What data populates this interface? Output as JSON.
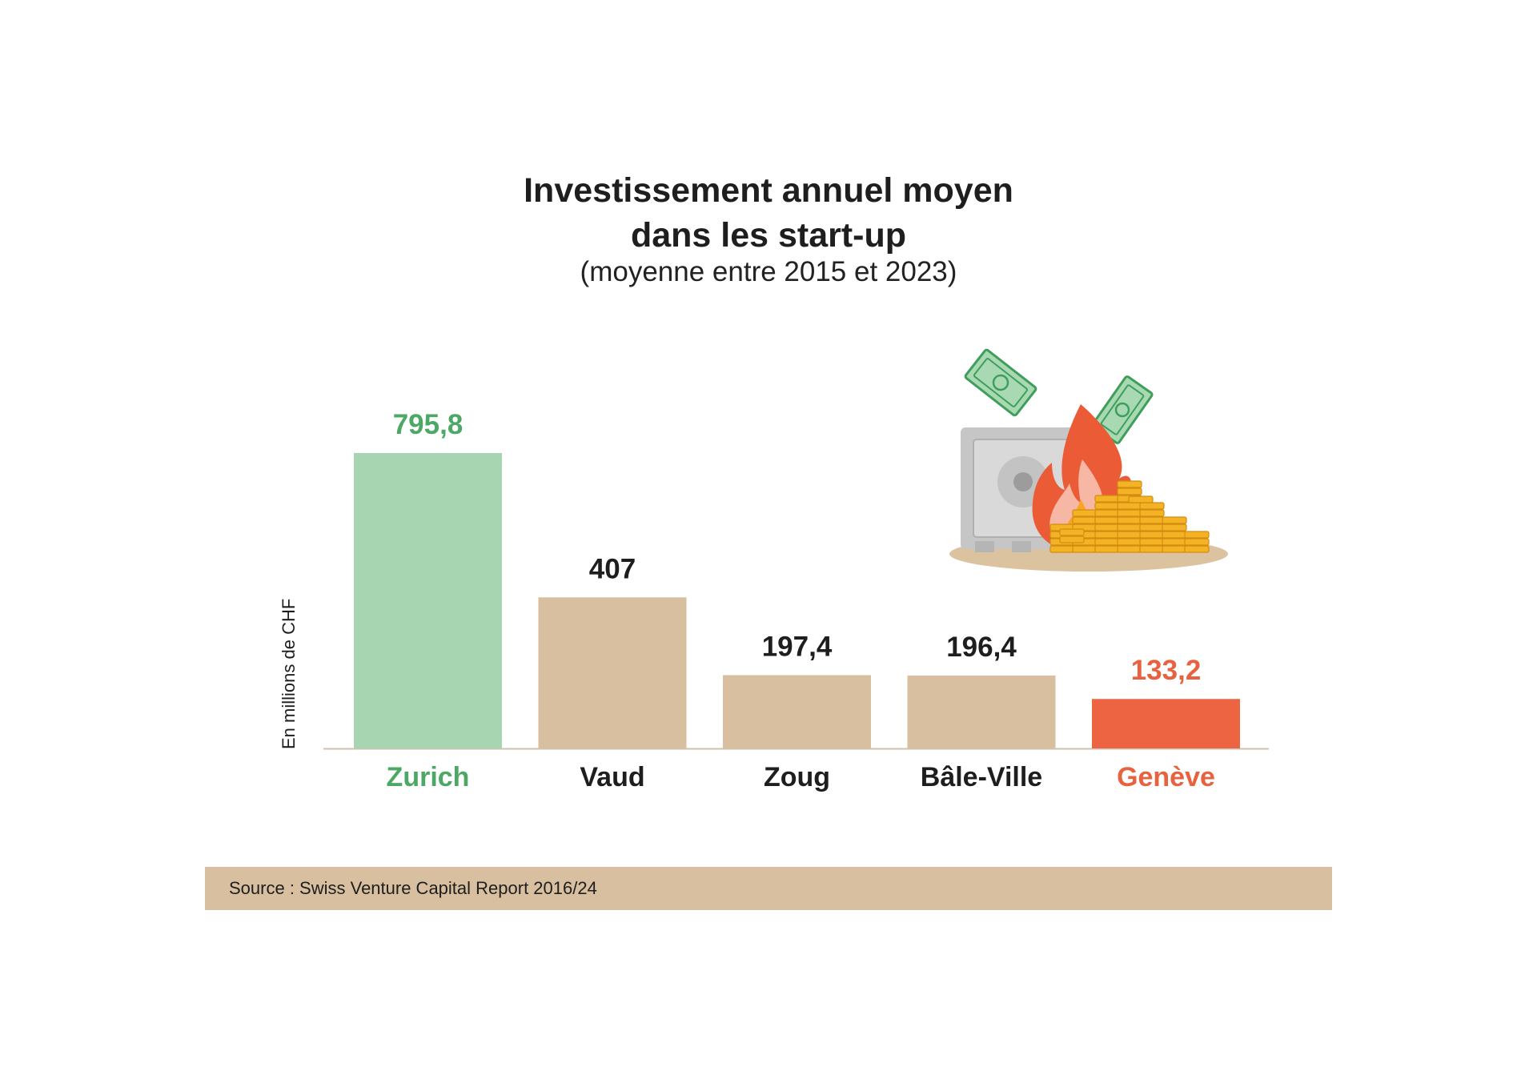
{
  "header": {
    "title_line1": "Investissement annuel moyen",
    "title_line2": "dans les start-up",
    "subtitle": "(moyenne entre 2015 et 2023)"
  },
  "footer": {
    "source": "Source : Swiss Venture Capital Report 2016/24"
  },
  "illustration": {
    "icon": "safe-on-fire-with-banknotes-and-coins-icon"
  },
  "colors": {
    "highlight_high": "#4da866",
    "highlight_high_bar": "#a8d5b1",
    "neutral_bar": "#d8bf9f",
    "highlight_low": "#e8623f",
    "highlight_low_bar": "#ec6442",
    "text": "#1e1e1e",
    "source_bar": "#d8bf9f"
  },
  "chart_data": {
    "type": "bar",
    "title": "Investissement annuel moyen dans les start-up",
    "subtitle": "(moyenne entre 2015 et 2023)",
    "xlabel": "",
    "ylabel": "En millions de CHF",
    "ylim": [
      0,
      795.8
    ],
    "grid": false,
    "categories": [
      "Zurich",
      "Vaud",
      "Zoug",
      "Bâle-Ville",
      "Genève"
    ],
    "values": [
      795.8,
      407,
      197.4,
      196.4,
      133.2
    ],
    "value_labels": [
      "795,8",
      "407",
      "197,4",
      "196,4",
      "133,2"
    ],
    "bar_colors": [
      "#a8d5b1",
      "#d8bf9f",
      "#d8bf9f",
      "#d8bf9f",
      "#ec6442"
    ],
    "label_colors": [
      "#4da866",
      "#1e1e1e",
      "#1e1e1e",
      "#1e1e1e",
      "#e8623f"
    ]
  }
}
